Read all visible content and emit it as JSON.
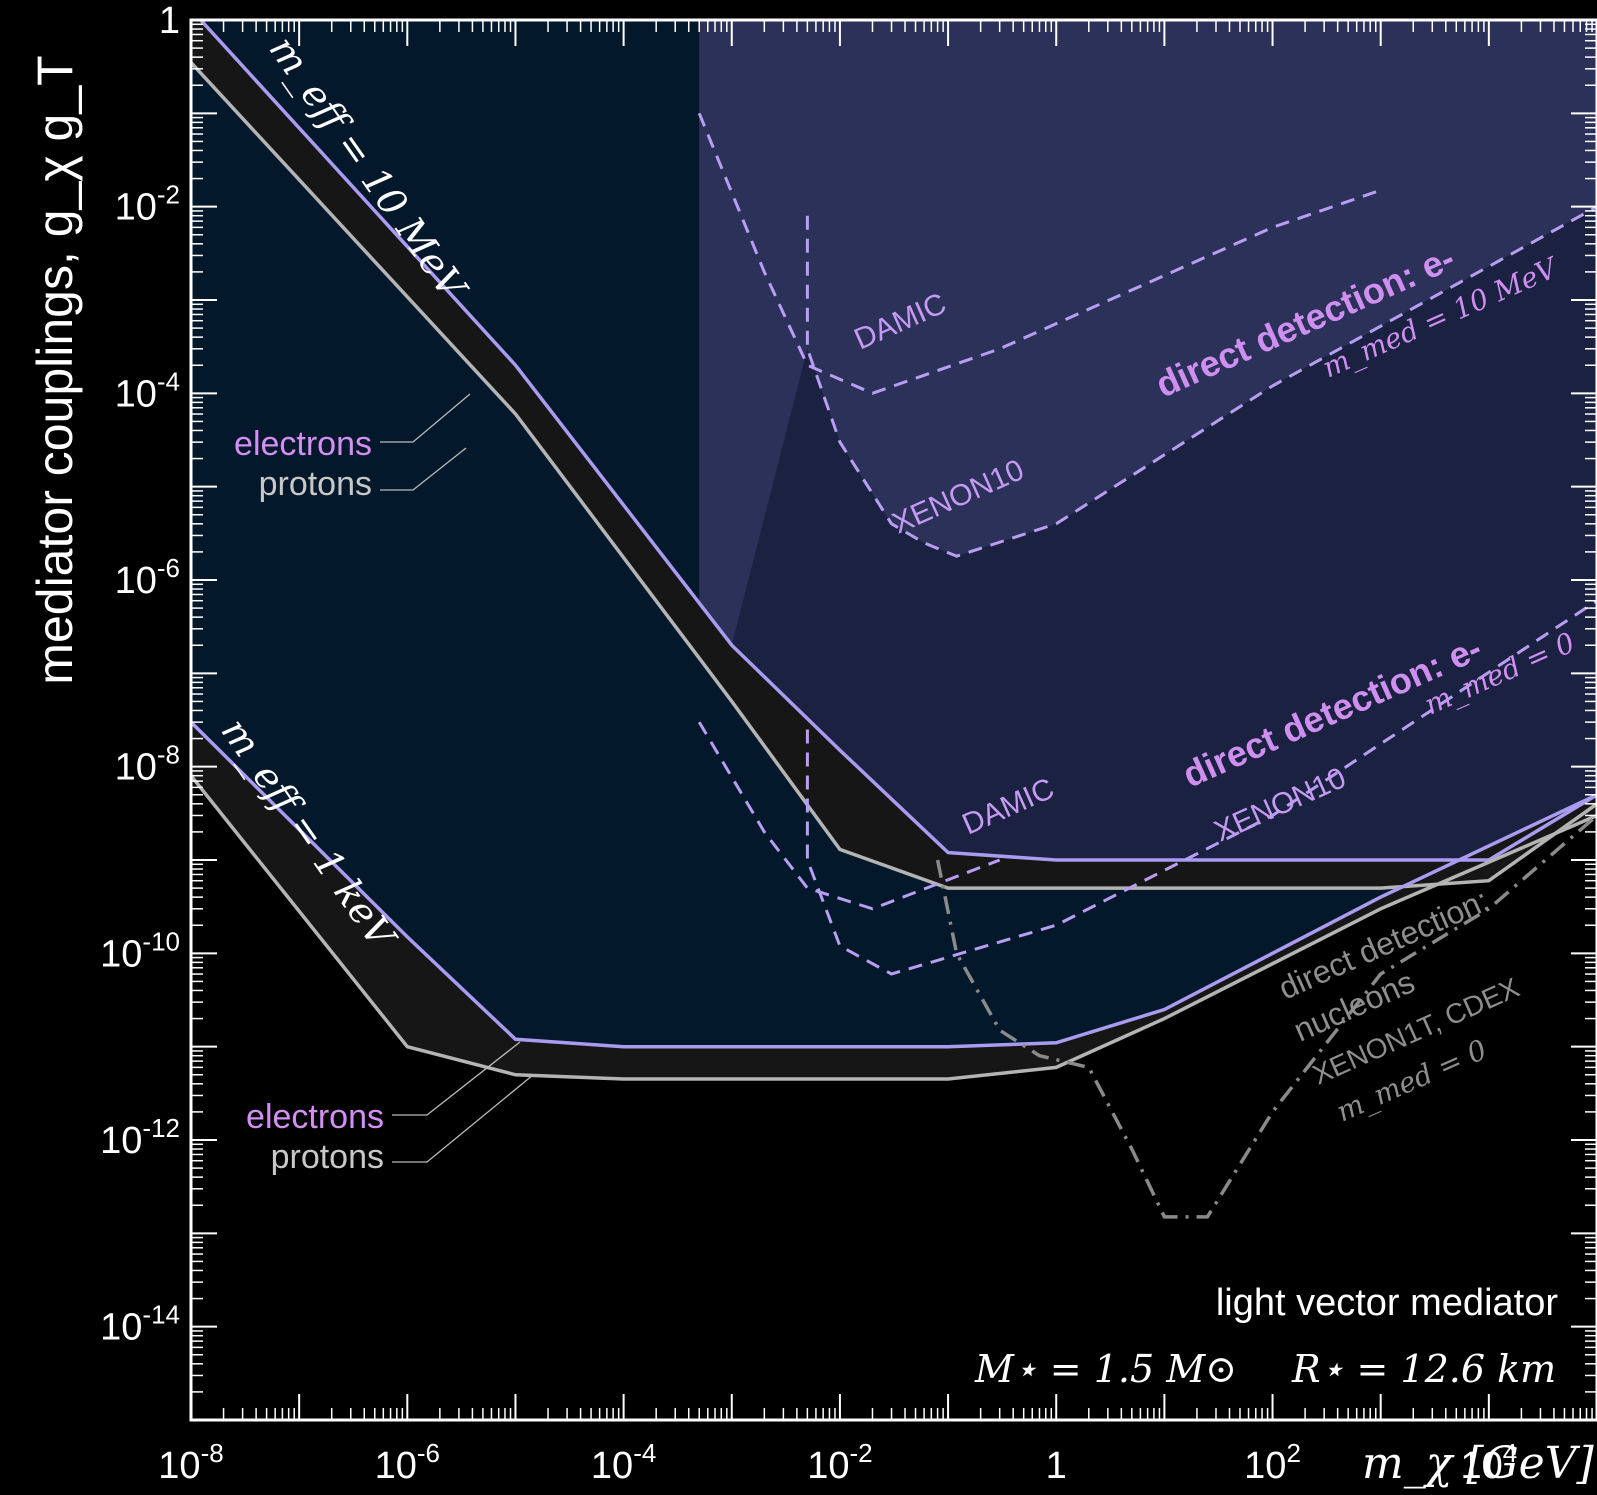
{
  "chart_data": {
    "type": "line",
    "xscale": "log",
    "yscale": "log",
    "xlim": [
      1e-08,
      100000.0
    ],
    "ylim": [
      1e-15,
      1
    ],
    "x_ticks": [
      {
        "value": 1e-08,
        "base": "10",
        "exp": "-8"
      },
      {
        "value": 1e-06,
        "base": "10",
        "exp": "-6"
      },
      {
        "value": 0.0001,
        "base": "10",
        "exp": "-4"
      },
      {
        "value": 0.01,
        "base": "10",
        "exp": "-2"
      },
      {
        "value": 1,
        "base": "1",
        "exp": ""
      },
      {
        "value": 100.0,
        "base": "10",
        "exp": "2"
      },
      {
        "value": 10000.0,
        "base": "10",
        "exp": "4"
      }
    ],
    "y_ticks": [
      {
        "value": 1,
        "base": "1",
        "exp": ""
      },
      {
        "value": 0.01,
        "base": "10",
        "exp": "-2"
      },
      {
        "value": 0.0001,
        "base": "10",
        "exp": "-4"
      },
      {
        "value": 1e-06,
        "base": "10",
        "exp": "-6"
      },
      {
        "value": 1e-08,
        "base": "10",
        "exp": "-8"
      },
      {
        "value": 1e-10,
        "base": "10",
        "exp": "-10"
      },
      {
        "value": 1e-12,
        "base": "10",
        "exp": "-12"
      },
      {
        "value": 1e-14,
        "base": "10",
        "exp": "-14"
      }
    ],
    "ylabel": "mediator couplings, g_χ g_T",
    "xlabel": "m_χ [GeV]",
    "colors": {
      "background": "#000000",
      "frame": "#ffffff",
      "meff_1keV_region": "#04182b",
      "meff_10MeV_region": "#1b2140",
      "dd_10MeV_region": "#2b3158",
      "electrons": "#a99cf0",
      "protons": "#b4b4b4",
      "band_fill": "#161616",
      "dd_electron": "#b89ef2",
      "dd_nucleon": "#8a8a8a",
      "label_electrons": "#d38ff2",
      "label_protons": "#c8c8c8",
      "label_dd": "#cf8ff0",
      "text": "#ffffff"
    },
    "series": [
      {
        "name": "electrons",
        "band": "m_eff = 10 MeV",
        "points": [
          [
            1e-08,
            1.3
          ],
          [
            1e-05,
            0.0002
          ],
          [
            0.001,
            2e-07
          ],
          [
            0.01,
            1.5e-08
          ],
          [
            0.1,
            1.2e-09
          ],
          [
            1,
            1e-09
          ],
          [
            1000.0,
            1e-09
          ],
          [
            10000.0,
            1e-09
          ],
          [
            100000.0,
            5e-09
          ]
        ]
      },
      {
        "name": "protons",
        "band": "m_eff = 10 MeV",
        "points": [
          [
            1e-08,
            0.35
          ],
          [
            1e-05,
            6e-05
          ],
          [
            0.001,
            5e-08
          ],
          [
            0.01,
            1.3e-09
          ],
          [
            0.1,
            5e-10
          ],
          [
            1,
            5e-10
          ],
          [
            1000.0,
            5e-10
          ],
          [
            10000.0,
            6e-10
          ],
          [
            100000.0,
            4e-09
          ]
        ]
      },
      {
        "name": "electrons",
        "band": "m_eff = 1 keV",
        "points": [
          [
            1e-08,
            3e-08
          ],
          [
            1e-06,
            1.5e-10
          ],
          [
            1e-05,
            1.2e-11
          ],
          [
            0.0001,
            1e-11
          ],
          [
            0.1,
            1e-11
          ],
          [
            1,
            1.1e-11
          ],
          [
            10,
            2.5e-11
          ],
          [
            1000.0,
            4e-10
          ],
          [
            100000.0,
            5e-09
          ]
        ]
      },
      {
        "name": "protons",
        "band": "m_eff = 1 keV",
        "points": [
          [
            1e-08,
            8e-09
          ],
          [
            1e-06,
            1e-11
          ],
          [
            1e-05,
            5e-12
          ],
          [
            0.0001,
            4.5e-12
          ],
          [
            0.1,
            4.5e-12
          ],
          [
            1,
            6e-12
          ],
          [
            10,
            2e-11
          ],
          [
            1000.0,
            3e-10
          ],
          [
            100000.0,
            3e-09
          ]
        ]
      },
      {
        "name": "DAMIC",
        "group": "direct detection: e- (m_med = 10 MeV)",
        "points": [
          [
            0.0005,
            0.1
          ],
          [
            0.002,
            0.002
          ],
          [
            0.005,
            0.0002
          ],
          [
            0.02,
            0.0001
          ],
          [
            0.3,
            0.0003
          ],
          [
            100,
            0.006
          ],
          [
            1000,
            0.015
          ]
        ]
      },
      {
        "name": "XENON10",
        "group": "direct detection: e- (m_med = 10 MeV)",
        "points": [
          [
            0.005,
            0.008
          ],
          [
            0.005,
            0.0003
          ],
          [
            0.01,
            3e-05
          ],
          [
            0.03,
            4e-06
          ],
          [
            0.06,
            2.5e-06
          ],
          [
            0.12,
            1.8e-06
          ],
          [
            1,
            4e-06
          ],
          [
            100,
            0.00012
          ],
          [
            100000.0,
            0.01
          ]
        ]
      },
      {
        "name": "DAMIC",
        "group": "direct detection: e- (m_med = 0)",
        "points": [
          [
            0.0005,
            3e-08
          ],
          [
            0.002,
            2e-09
          ],
          [
            0.005,
            5e-10
          ],
          [
            0.02,
            3e-10
          ],
          [
            0.3,
            1e-09
          ]
        ]
      },
      {
        "name": "XENON10",
        "group": "direct detection: e- (m_med = 0)",
        "points": [
          [
            0.005,
            2.5e-08
          ],
          [
            0.005,
            1e-09
          ],
          [
            0.01,
            1.2e-10
          ],
          [
            0.03,
            6e-11
          ],
          [
            1,
            2e-10
          ],
          [
            100,
            3e-09
          ],
          [
            100000.0,
            6e-07
          ]
        ]
      },
      {
        "name": "XENON1T, CDEX",
        "group": "direct detection: nucleons (m_med = 0)",
        "points": [
          [
            0.08,
            1e-09
          ],
          [
            0.12,
            1e-10
          ],
          [
            0.3,
            1.5e-11
          ],
          [
            0.7,
            8e-12
          ],
          [
            2,
            6e-12
          ],
          [
            5,
            8e-13
          ],
          [
            10,
            1.5e-13
          ],
          [
            25,
            1.5e-13
          ],
          [
            100,
            2e-12
          ],
          [
            1000,
            6e-11
          ],
          [
            10000.0,
            3e-10
          ],
          [
            100000.0,
            3e-09
          ]
        ]
      }
    ],
    "annotations": {
      "meff_10MeV": "m_eff = 10 MeV",
      "meff_1keV": "m_eff = 1 keV",
      "electrons": "electrons",
      "protons": "protons",
      "dd_electron": "direct detection: e-",
      "mmed_10MeV": "m_med = 10 MeV",
      "mmed_0": "m_med = 0",
      "damic": "DAMIC",
      "xenon10": "XENON10",
      "dd_nucleon_1": "direct detection:",
      "dd_nucleon_2": "nucleons",
      "xenon1t": "XENON1T, CDEX",
      "scenario": "light vector mediator",
      "mstar": "M⋆ = 1.5 M⊙",
      "rstar": "R⋆ = 12.6 km"
    }
  }
}
